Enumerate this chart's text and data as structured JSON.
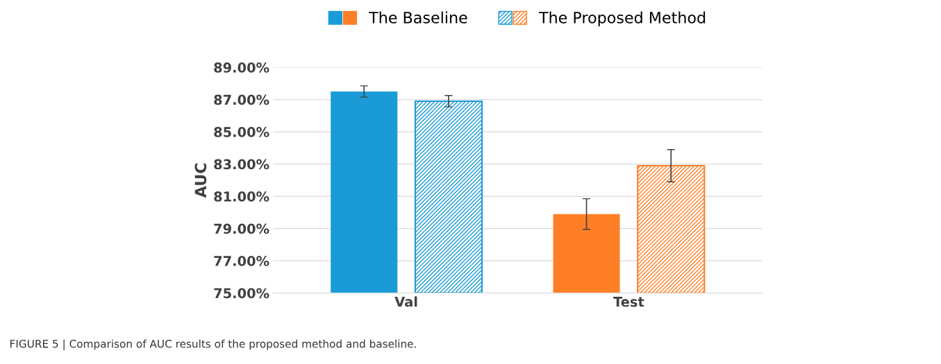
{
  "chart_data": {
    "type": "bar",
    "ylabel": "AUC",
    "categories": [
      "Val",
      "Test"
    ],
    "series": [
      {
        "name": "The Baseline",
        "colors": [
          "#1a9bd7",
          "#ff7f27"
        ],
        "values": [
          87.5,
          79.9
        ],
        "errors": [
          0.35,
          0.95
        ]
      },
      {
        "name": "The Proposed Method",
        "colors": [
          "#1a9bd7",
          "#ff7f27"
        ],
        "values": [
          86.9,
          82.9
        ],
        "errors": [
          0.35,
          1.0
        ]
      }
    ],
    "ylim": [
      75,
      89
    ],
    "yticks": [
      {
        "value": 75,
        "label": "75.00%"
      },
      {
        "value": 77,
        "label": "77.00%"
      },
      {
        "value": 79,
        "label": "79.00%"
      },
      {
        "value": 81,
        "label": "81.00%"
      },
      {
        "value": 83,
        "label": "83.00%"
      },
      {
        "value": 85,
        "label": "85.00%"
      },
      {
        "value": 87,
        "label": "87.00%"
      },
      {
        "value": 89,
        "label": "89.00%"
      }
    ],
    "grid": "y",
    "legend": "top",
    "annotations": [
      "FIGURE 5 | Comparison of AUC results of the proposed method and baseline."
    ]
  }
}
